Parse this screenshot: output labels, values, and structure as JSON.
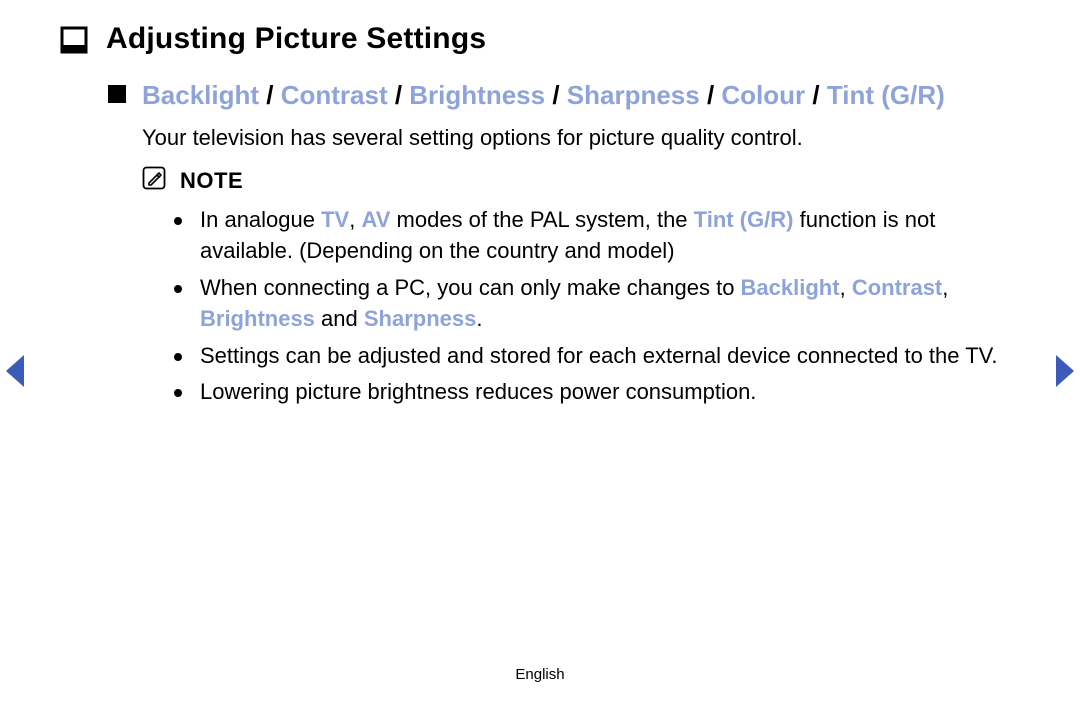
{
  "title": "Adjusting Picture Settings",
  "subheading_items": [
    "Backlight",
    "Contrast",
    "Brightness",
    "Sharpness",
    "Colour",
    "Tint (G/R)"
  ],
  "slash": " / ",
  "intro": "Your television has several setting options for picture quality control.",
  "note_label": "NOTE",
  "notes": [
    {
      "parts": [
        {
          "t": "In analogue "
        },
        {
          "t": "TV",
          "hl": true
        },
        {
          "t": ", "
        },
        {
          "t": "AV",
          "hl": true
        },
        {
          "t": " modes of the PAL system, the "
        },
        {
          "t": "Tint (G/R)",
          "hl": true
        },
        {
          "t": " function is not available. (Depending on the country and model)"
        }
      ]
    },
    {
      "parts": [
        {
          "t": "When connecting a PC, you can only make changes to "
        },
        {
          "t": "Backlight",
          "hl": true
        },
        {
          "t": ", "
        },
        {
          "t": "Contrast",
          "hl": true
        },
        {
          "t": ", "
        },
        {
          "t": "Brightness",
          "hl": true
        },
        {
          "t": " and "
        },
        {
          "t": "Sharpness",
          "hl": true
        },
        {
          "t": "."
        }
      ]
    },
    {
      "parts": [
        {
          "t": "Settings can be adjusted and stored for each external device connected to the TV."
        }
      ]
    },
    {
      "parts": [
        {
          "t": "Lowering picture brightness reduces power consumption."
        }
      ]
    }
  ],
  "footer_lang": "English",
  "colors": {
    "highlight": "#8ea3d9",
    "arrow": "#3a5bb8",
    "text": "#000000",
    "background": "#ffffff"
  }
}
